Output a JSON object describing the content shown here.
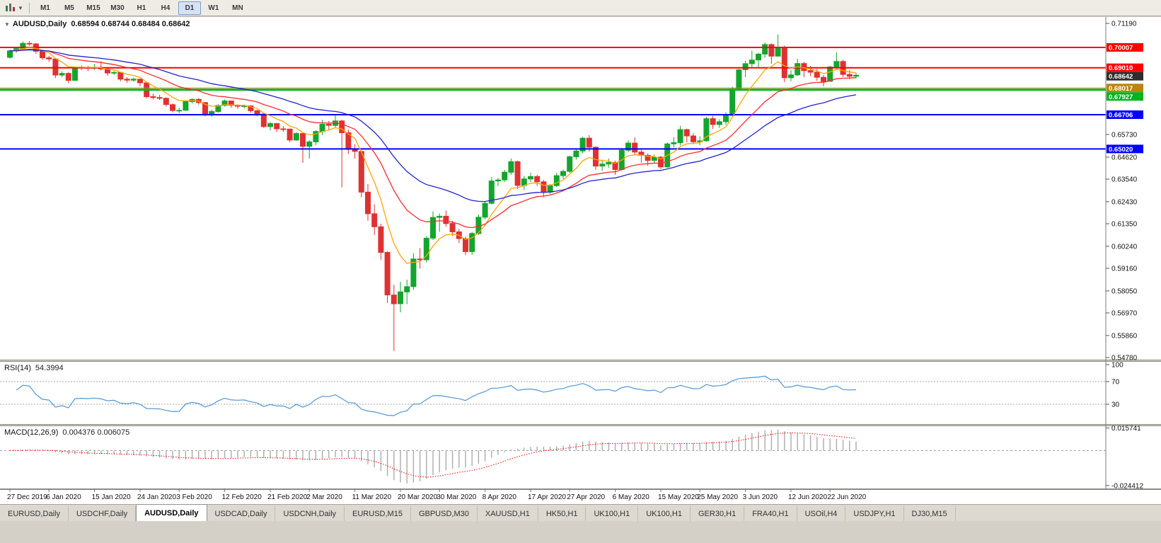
{
  "toolbar": {
    "timeframes": [
      "M1",
      "M5",
      "M15",
      "M30",
      "H1",
      "H4",
      "D1",
      "W1",
      "MN"
    ],
    "active_timeframe": "D1"
  },
  "chart": {
    "symbol_title": "AUDUSD,Daily",
    "ohlc_display": "0.68594 0.68744 0.68484 0.68642"
  },
  "chart_data": {
    "type": "candlestick",
    "symbol": "AUDUSD",
    "timeframe": "Daily",
    "bull_color": "#14A52E",
    "bear_color": "#DE3232",
    "price_axis_top_value": 0.7119,
    "y_axis_ticks": [
      "0.71190",
      "0.65730",
      "0.64620",
      "0.63540",
      "0.62430",
      "0.61350",
      "0.60240",
      "0.59160",
      "0.58050",
      "0.56970",
      "0.55860",
      "0.54780"
    ],
    "x_labels": [
      "27 Dec 2019",
      "6 Jan 2020",
      "15 Jan 2020",
      "24 Jan 2020",
      "3 Feb 2020",
      "12 Feb 2020",
      "21 Feb 2020",
      "2 Mar 2020",
      "11 Mar 2020",
      "20 Mar 2020",
      "30 Mar 2020",
      "8 Apr 2020",
      "17 Apr 2020",
      "27 Apr 2020",
      "6 May 2020",
      "15 May 2020",
      "25 May 2020",
      "3 Jun 2020",
      "12 Jun 2020",
      "22 Jun 2020"
    ],
    "x_label_indices": [
      0,
      6,
      13,
      20,
      26,
      33,
      40,
      46,
      53,
      60,
      66,
      73,
      80,
      86,
      93,
      100,
      106,
      113,
      120,
      126
    ],
    "horizontal_lines": [
      {
        "value": 0.70007,
        "label": "0.70007",
        "color": "#FF0000",
        "width": 2
      },
      {
        "value": 0.6901,
        "label": "0.69010",
        "color": "#FF0000",
        "width": 2
      },
      {
        "value": 0.68017,
        "label": "0.68017",
        "color": "#B8860B",
        "width": 1
      },
      {
        "value": 0.67927,
        "label": "0.67927",
        "color": "#00B41E",
        "width": 3
      },
      {
        "value": 0.66706,
        "label": "0.66706",
        "color": "#0000FF",
        "width": 2
      },
      {
        "value": 0.6502,
        "label": "0.65020",
        "color": "#0000FF",
        "width": 2
      }
    ],
    "current_price": {
      "value": 0.68642,
      "label": "0.68642",
      "box_color": "#2E2E2E"
    },
    "moving_averages": [
      {
        "period": 7,
        "color": "#FFA500"
      },
      {
        "period": 18,
        "color": "#FF2A2A"
      },
      {
        "period": 34,
        "color": "#2222CC"
      }
    ],
    "candles": [
      [
        0.6952,
        0.699,
        0.6945,
        0.6984
      ],
      [
        0.6984,
        0.7,
        0.6975,
        0.6995
      ],
      [
        0.6995,
        0.703,
        0.699,
        0.7021
      ],
      [
        0.7021,
        0.7032,
        0.7008,
        0.7018
      ],
      [
        0.7018,
        0.7023,
        0.697,
        0.6982
      ],
      [
        0.6982,
        0.6988,
        0.694,
        0.695
      ],
      [
        0.695,
        0.696,
        0.693,
        0.6944
      ],
      [
        0.6944,
        0.6949,
        0.685,
        0.6865
      ],
      [
        0.6865,
        0.6884,
        0.6855,
        0.6873
      ],
      [
        0.6873,
        0.688,
        0.6825,
        0.6839
      ],
      [
        0.6839,
        0.6905,
        0.6838,
        0.69
      ],
      [
        0.69,
        0.6912,
        0.689,
        0.6903
      ],
      [
        0.6903,
        0.691,
        0.6884,
        0.6899
      ],
      [
        0.6899,
        0.692,
        0.689,
        0.6903
      ],
      [
        0.6903,
        0.6933,
        0.6888,
        0.6895
      ],
      [
        0.6895,
        0.69,
        0.6862,
        0.6875
      ],
      [
        0.6875,
        0.6885,
        0.6865,
        0.6878
      ],
      [
        0.6878,
        0.688,
        0.6835,
        0.6845
      ],
      [
        0.6845,
        0.6855,
        0.6827,
        0.684
      ],
      [
        0.684,
        0.6852,
        0.6832,
        0.6845
      ],
      [
        0.6845,
        0.6848,
        0.681,
        0.6827
      ],
      [
        0.6827,
        0.683,
        0.675,
        0.6759
      ],
      [
        0.6759,
        0.6774,
        0.6745,
        0.6755
      ],
      [
        0.6755,
        0.6768,
        0.6742,
        0.6751
      ],
      [
        0.6751,
        0.6755,
        0.671,
        0.672
      ],
      [
        0.672,
        0.6725,
        0.6682,
        0.6691
      ],
      [
        0.6691,
        0.6705,
        0.6678,
        0.6692
      ],
      [
        0.6692,
        0.674,
        0.669,
        0.6735
      ],
      [
        0.6735,
        0.675,
        0.6725,
        0.6746
      ],
      [
        0.6746,
        0.6752,
        0.672,
        0.673
      ],
      [
        0.673,
        0.6733,
        0.6662,
        0.6671
      ],
      [
        0.6671,
        0.6695,
        0.666,
        0.6686
      ],
      [
        0.6686,
        0.6722,
        0.668,
        0.6716
      ],
      [
        0.6716,
        0.6745,
        0.671,
        0.6738
      ],
      [
        0.6738,
        0.674,
        0.6705,
        0.6716
      ],
      [
        0.6716,
        0.6722,
        0.67,
        0.6712
      ],
      [
        0.6712,
        0.672,
        0.6702,
        0.6714
      ],
      [
        0.6714,
        0.6717,
        0.668,
        0.669
      ],
      [
        0.669,
        0.6695,
        0.6662,
        0.6674
      ],
      [
        0.6674,
        0.6678,
        0.6605,
        0.6612
      ],
      [
        0.6612,
        0.6635,
        0.6593,
        0.6627
      ],
      [
        0.6627,
        0.663,
        0.6585,
        0.6601
      ],
      [
        0.6601,
        0.6614,
        0.6586,
        0.66
      ],
      [
        0.66,
        0.6602,
        0.6535,
        0.6546
      ],
      [
        0.6546,
        0.6585,
        0.6542,
        0.6578
      ],
      [
        0.6578,
        0.658,
        0.6434,
        0.6515
      ],
      [
        0.6515,
        0.6545,
        0.6455,
        0.6537
      ],
      [
        0.6537,
        0.6595,
        0.652,
        0.6588
      ],
      [
        0.6588,
        0.6645,
        0.657,
        0.6624
      ],
      [
        0.6624,
        0.664,
        0.6595,
        0.6618
      ],
      [
        0.6618,
        0.667,
        0.6605,
        0.664
      ],
      [
        0.664,
        0.6645,
        0.6313,
        0.6582
      ],
      [
        0.6582,
        0.6598,
        0.6477,
        0.65
      ],
      [
        0.65,
        0.6525,
        0.6455,
        0.649
      ],
      [
        0.649,
        0.6495,
        0.6265,
        0.629
      ],
      [
        0.629,
        0.633,
        0.615,
        0.6184
      ],
      [
        0.6184,
        0.623,
        0.608,
        0.612
      ],
      [
        0.612,
        0.6135,
        0.5958,
        0.5994
      ],
      [
        0.5994,
        0.6,
        0.5745,
        0.5785
      ],
      [
        0.5785,
        0.5835,
        0.551,
        0.5742
      ],
      [
        0.5742,
        0.585,
        0.57,
        0.58
      ],
      [
        0.58,
        0.586,
        0.574,
        0.5826
      ],
      [
        0.5826,
        0.599,
        0.581,
        0.5962
      ],
      [
        0.5962,
        0.6015,
        0.5915,
        0.5958
      ],
      [
        0.5958,
        0.6075,
        0.5945,
        0.6064
      ],
      [
        0.6064,
        0.6195,
        0.6055,
        0.6166
      ],
      [
        0.6166,
        0.6185,
        0.6095,
        0.6172
      ],
      [
        0.6172,
        0.62,
        0.612,
        0.6136
      ],
      [
        0.6136,
        0.615,
        0.6075,
        0.6095
      ],
      [
        0.6095,
        0.611,
        0.604,
        0.6062
      ],
      [
        0.6062,
        0.6072,
        0.598,
        0.5998
      ],
      [
        0.5998,
        0.6095,
        0.5982,
        0.6087
      ],
      [
        0.6087,
        0.618,
        0.608,
        0.6167
      ],
      [
        0.6167,
        0.6245,
        0.6155,
        0.6235
      ],
      [
        0.6235,
        0.6365,
        0.623,
        0.6345
      ],
      [
        0.6345,
        0.636,
        0.632,
        0.635
      ],
      [
        0.635,
        0.64,
        0.634,
        0.6388
      ],
      [
        0.6388,
        0.6455,
        0.6375,
        0.644
      ],
      [
        0.644,
        0.6445,
        0.6305,
        0.6323
      ],
      [
        0.6323,
        0.637,
        0.63,
        0.6355
      ],
      [
        0.6355,
        0.6385,
        0.634,
        0.6367
      ],
      [
        0.6367,
        0.6375,
        0.632,
        0.6341
      ],
      [
        0.6341,
        0.635,
        0.6265,
        0.629
      ],
      [
        0.629,
        0.633,
        0.628,
        0.6322
      ],
      [
        0.6322,
        0.6385,
        0.6315,
        0.6371
      ],
      [
        0.6371,
        0.64,
        0.6355,
        0.6392
      ],
      [
        0.6392,
        0.647,
        0.6385,
        0.6464
      ],
      [
        0.6464,
        0.65,
        0.645,
        0.6492
      ],
      [
        0.6492,
        0.6562,
        0.648,
        0.6555
      ],
      [
        0.6555,
        0.657,
        0.649,
        0.6511
      ],
      [
        0.6511,
        0.6515,
        0.64,
        0.6418
      ],
      [
        0.6418,
        0.645,
        0.6395,
        0.6428
      ],
      [
        0.6428,
        0.6455,
        0.641,
        0.6436
      ],
      [
        0.6436,
        0.6445,
        0.6375,
        0.6401
      ],
      [
        0.6401,
        0.6505,
        0.6395,
        0.6496
      ],
      [
        0.6496,
        0.6545,
        0.6485,
        0.6531
      ],
      [
        0.6531,
        0.656,
        0.6475,
        0.6487
      ],
      [
        0.6487,
        0.6505,
        0.6435,
        0.6471
      ],
      [
        0.6471,
        0.648,
        0.642,
        0.6446
      ],
      [
        0.6446,
        0.6475,
        0.643,
        0.6462
      ],
      [
        0.6462,
        0.6468,
        0.6403,
        0.6414
      ],
      [
        0.6414,
        0.6535,
        0.641,
        0.6527
      ],
      [
        0.6527,
        0.656,
        0.651,
        0.6533
      ],
      [
        0.6533,
        0.6616,
        0.652,
        0.6597
      ],
      [
        0.6597,
        0.6602,
        0.6535,
        0.6566
      ],
      [
        0.6566,
        0.658,
        0.6525,
        0.6537
      ],
      [
        0.6537,
        0.6565,
        0.652,
        0.6542
      ],
      [
        0.6542,
        0.666,
        0.6538,
        0.6651
      ],
      [
        0.6651,
        0.6665,
        0.66,
        0.6622
      ],
      [
        0.6622,
        0.6648,
        0.6605,
        0.6636
      ],
      [
        0.6636,
        0.6683,
        0.662,
        0.6667
      ],
      [
        0.6667,
        0.6808,
        0.6662,
        0.6797
      ],
      [
        0.6797,
        0.6895,
        0.679,
        0.6891
      ],
      [
        0.6891,
        0.6935,
        0.6855,
        0.6921
      ],
      [
        0.6921,
        0.6985,
        0.6905,
        0.6939
      ],
      [
        0.6939,
        0.6975,
        0.69,
        0.6968
      ],
      [
        0.6968,
        0.7025,
        0.695,
        0.7015
      ],
      [
        0.7015,
        0.702,
        0.692,
        0.6958
      ],
      [
        0.6958,
        0.7064,
        0.6955,
        0.6999
      ],
      [
        0.6999,
        0.701,
        0.683,
        0.6852
      ],
      [
        0.6852,
        0.689,
        0.6835,
        0.6866
      ],
      [
        0.6866,
        0.6945,
        0.686,
        0.6922
      ],
      [
        0.6922,
        0.693,
        0.6855,
        0.6887
      ],
      [
        0.6887,
        0.691,
        0.686,
        0.6879
      ],
      [
        0.6879,
        0.6895,
        0.6837,
        0.6854
      ],
      [
        0.6854,
        0.6865,
        0.681,
        0.6834
      ],
      [
        0.6834,
        0.691,
        0.6832,
        0.6905
      ],
      [
        0.6905,
        0.6977,
        0.69,
        0.6932
      ],
      [
        0.6932,
        0.694,
        0.6855,
        0.6868
      ],
      [
        0.6868,
        0.689,
        0.6845,
        0.68594
      ],
      [
        0.68594,
        0.68744,
        0.68484,
        0.68642
      ]
    ],
    "indicators": {
      "rsi": {
        "label": "RSI(14)",
        "value_display": "54.3994",
        "period": 14,
        "levels": [
          70,
          30
        ],
        "axis_ticks": [
          100,
          70,
          30
        ],
        "color": "#4F97D7"
      },
      "macd": {
        "label": "MACD(12,26,9)",
        "values_display": "0.004376 0.006075",
        "fast": 12,
        "slow": 26,
        "signal": 9,
        "axis_ticks": [
          "0.015741",
          "-0.024412"
        ],
        "histogram_color": "#ABABAB",
        "signal_color": "#FF0000"
      }
    }
  },
  "tabs": {
    "items": [
      "EURUSD,Daily",
      "USDCHF,Daily",
      "AUDUSD,Daily",
      "USDCAD,Daily",
      "USDCNH,Daily",
      "EURUSD,M15",
      "GBPUSD,M30",
      "XAUUSD,H1",
      "HK50,H1",
      "UK100,H1",
      "UK100,H1",
      "GER30,H1",
      "FRA40,H1",
      "USOil,H4",
      "USDJPY,H1",
      "DJ30,M15"
    ],
    "active_index": 2
  }
}
